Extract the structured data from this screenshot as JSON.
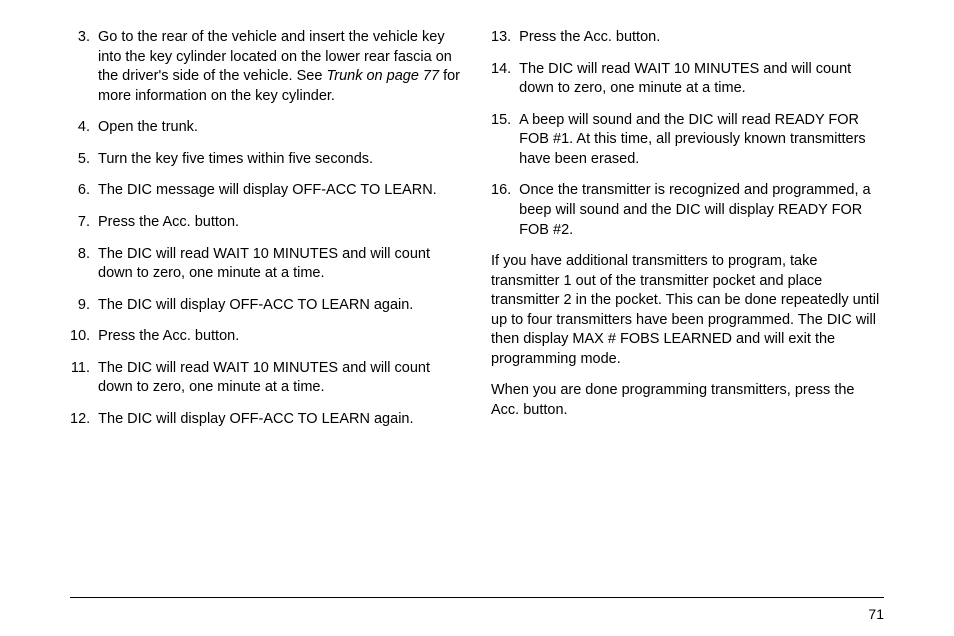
{
  "left": {
    "items": [
      {
        "n": "3.",
        "t": "Go to the rear of the vehicle and insert the vehicle key into the key cylinder located on the lower rear fascia on the driver's side of the vehicle. See ",
        "link": "Trunk on page 77",
        "after": " for more information on the key cylinder."
      },
      {
        "n": "4.",
        "t": "Open the trunk."
      },
      {
        "n": "5.",
        "t": "Turn the key five times within five seconds."
      },
      {
        "n": "6.",
        "t": "The DIC message will display OFF-ACC TO LEARN."
      },
      {
        "n": "7.",
        "t": "Press the Acc. button."
      },
      {
        "n": "8.",
        "t": "The DIC will read WAIT 10 MINUTES and will count down to zero, one minute at a time."
      },
      {
        "n": "9.",
        "t": "The DIC will display OFF-ACC TO LEARN again."
      },
      {
        "n": "10.",
        "t": "Press the Acc. button."
      },
      {
        "n": "11.",
        "t": "The DIC will read WAIT 10 MINUTES and will count down to zero, one minute at a time."
      },
      {
        "n": "12.",
        "t": "The DIC will display OFF-ACC TO LEARN again."
      }
    ]
  },
  "right": {
    "items": [
      {
        "n": "13.",
        "t": "Press the Acc. button."
      },
      {
        "n": "14.",
        "t": "The DIC will read WAIT 10 MINUTES and will count down to zero, one minute at a time."
      },
      {
        "n": "15.",
        "t": "A beep will sound and the DIC will read READY FOR FOB #1. At this time, all previously known transmitters have been erased."
      },
      {
        "n": "16.",
        "t": "Once the transmitter is recognized and programmed, a beep will sound and the DIC will display READY FOR FOB #2."
      }
    ],
    "para1": "If you have additional transmitters to program, take transmitter 1 out of the transmitter pocket and place transmitter 2 in the pocket. This can be done repeatedly until up to four transmitters have been programmed. The DIC will then display MAX # FOBS LEARNED and will exit the programming mode.",
    "para2": "When you are done programming transmitters, press the Acc. button."
  },
  "pageNumber": "71"
}
